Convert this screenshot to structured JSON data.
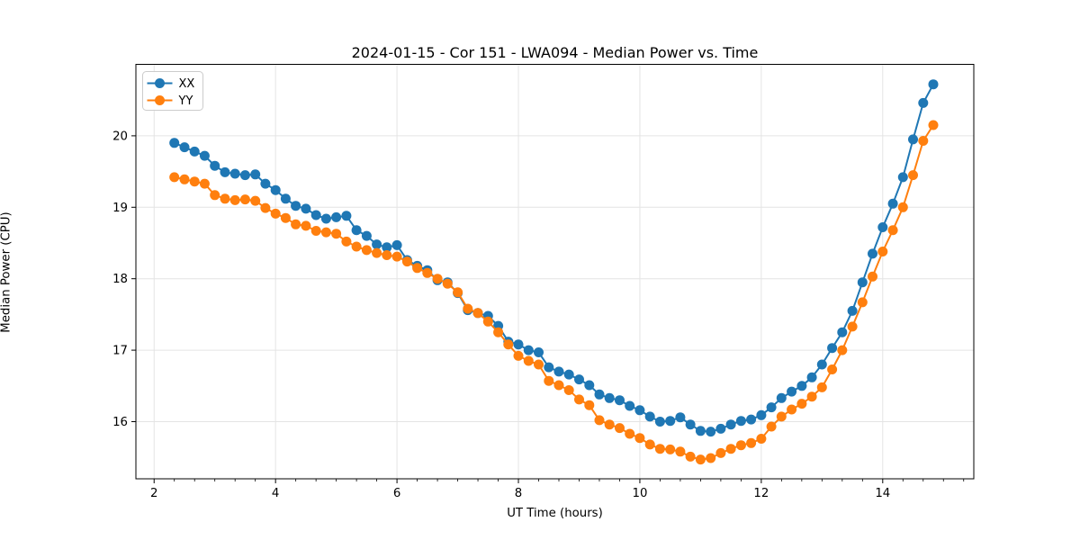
{
  "figure": {
    "background": "#ffffff"
  },
  "chart_data": {
    "type": "line",
    "title": "2024-01-15 - Cor 151 - LWA094 - Median Power vs. Time",
    "xlabel": "UT Time (hours)",
    "ylabel": "Median Power (CPU)",
    "xlim": [
      1.7,
      15.5
    ],
    "ylim": [
      15.2,
      21.0
    ],
    "xticks": [
      2,
      4,
      6,
      8,
      10,
      12,
      14
    ],
    "yticks": [
      16,
      17,
      18,
      19,
      20
    ],
    "x_minor_step": 0.33333,
    "grid": true,
    "grid_color": "#e4e4e4",
    "spine_color": "#000000",
    "legend": {
      "position": "upper-left",
      "entries": [
        "XX",
        "YY"
      ]
    },
    "marker": "circle",
    "marker_radius": 5.5,
    "line_width": 2,
    "x": [
      2.333,
      2.5,
      2.667,
      2.833,
      3.0,
      3.167,
      3.333,
      3.5,
      3.667,
      3.833,
      4.0,
      4.167,
      4.333,
      4.5,
      4.667,
      4.833,
      5.0,
      5.167,
      5.333,
      5.5,
      5.667,
      5.833,
      6.0,
      6.167,
      6.333,
      6.5,
      6.667,
      6.833,
      7.0,
      7.167,
      7.333,
      7.5,
      7.667,
      7.833,
      8.0,
      8.167,
      8.333,
      8.5,
      8.667,
      8.833,
      9.0,
      9.167,
      9.333,
      9.5,
      9.667,
      9.833,
      10.0,
      10.167,
      10.333,
      10.5,
      10.667,
      10.833,
      11.0,
      11.167,
      11.333,
      11.5,
      11.667,
      11.833,
      12.0,
      12.167,
      12.333,
      12.5,
      12.667,
      12.833,
      13.0,
      13.167,
      13.333,
      13.5,
      13.667,
      13.833,
      14.0,
      14.167,
      14.333,
      14.5,
      14.667,
      14.833
    ],
    "series": [
      {
        "name": "XX",
        "color": "#1f77b4",
        "values": [
          19.9,
          19.84,
          19.78,
          19.72,
          19.58,
          19.49,
          19.47,
          19.45,
          19.46,
          19.33,
          19.24,
          19.12,
          19.02,
          18.98,
          18.89,
          18.84,
          18.86,
          18.88,
          18.68,
          18.6,
          18.48,
          18.44,
          18.47,
          18.26,
          18.18,
          18.12,
          17.98,
          17.95,
          17.8,
          17.56,
          17.52,
          17.48,
          17.34,
          17.12,
          17.08,
          17.0,
          16.97,
          16.76,
          16.7,
          16.66,
          16.59,
          16.51,
          16.38,
          16.33,
          16.3,
          16.22,
          16.16,
          16.07,
          16.0,
          16.01,
          16.06,
          15.96,
          15.87,
          15.86,
          15.9,
          15.96,
          16.01,
          16.03,
          16.09,
          16.2,
          16.33,
          16.42,
          16.5,
          16.62,
          16.8,
          17.03,
          17.25,
          17.55,
          17.95,
          18.35,
          18.72,
          19.05,
          19.42,
          19.95,
          20.46,
          20.72
        ]
      },
      {
        "name": "YY",
        "color": "#ff7f0e",
        "values": [
          19.42,
          19.39,
          19.36,
          19.33,
          19.17,
          19.12,
          19.1,
          19.11,
          19.09,
          18.99,
          18.91,
          18.85,
          18.76,
          18.74,
          18.67,
          18.65,
          18.63,
          18.52,
          18.45,
          18.4,
          18.36,
          18.33,
          18.31,
          18.24,
          18.15,
          18.08,
          18.0,
          17.93,
          17.81,
          17.58,
          17.52,
          17.4,
          17.25,
          17.08,
          16.92,
          16.85,
          16.8,
          16.57,
          16.51,
          16.44,
          16.31,
          16.23,
          16.02,
          15.96,
          15.91,
          15.83,
          15.77,
          15.68,
          15.62,
          15.61,
          15.58,
          15.51,
          15.47,
          15.49,
          15.56,
          15.62,
          15.67,
          15.7,
          15.76,
          15.93,
          16.07,
          16.17,
          16.25,
          16.35,
          16.48,
          16.73,
          17.0,
          17.33,
          17.67,
          18.03,
          18.38,
          18.68,
          19.0,
          19.45,
          19.93,
          20.15
        ]
      }
    ]
  }
}
